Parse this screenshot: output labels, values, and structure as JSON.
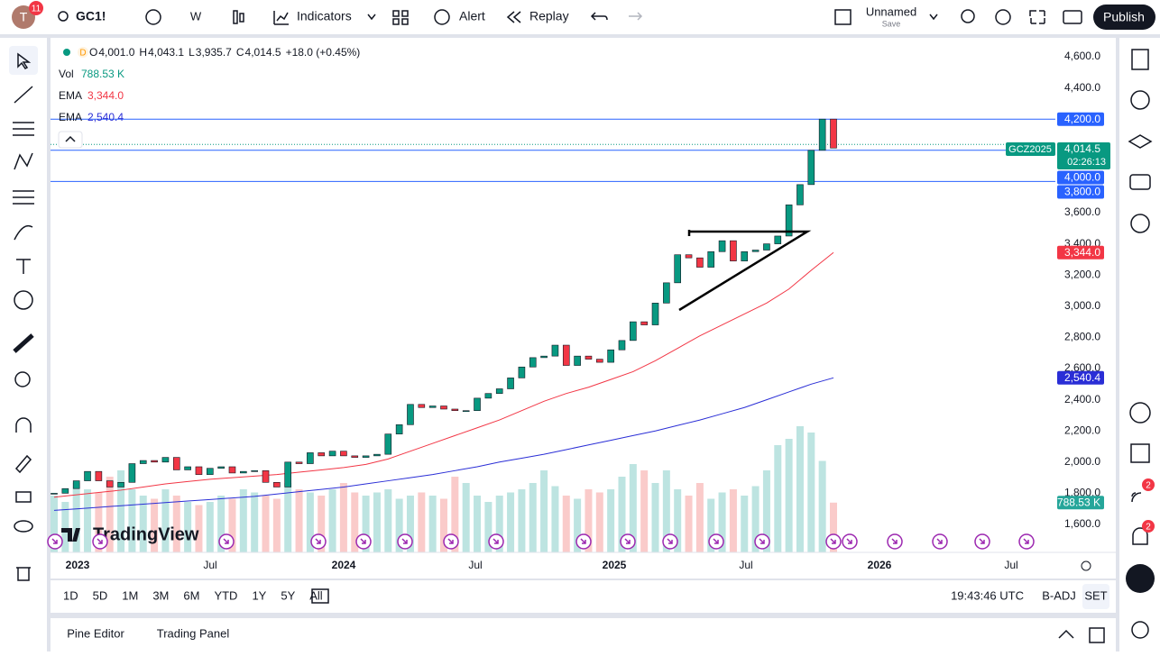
{
  "toolbar": {
    "avatar": "T",
    "badge": "11",
    "symbol": "GC1!",
    "interval": "W",
    "indicators": "Indicators",
    "alert": "Alert",
    "replay": "Replay",
    "layout_name": "Unnamed",
    "layout_status": "Save",
    "publish": "Publish"
  },
  "legend": {
    "timeframe": "D",
    "ohlc": [
      {
        "key": "O",
        "value": "4,001.0"
      },
      {
        "key": "H",
        "value": "4,043.1"
      },
      {
        "key": "L",
        "value": "3,935.7"
      },
      {
        "key": "C",
        "value": "4,014.5"
      }
    ],
    "change": "+18.0 (+0.45%)",
    "volume": {
      "key": "Vol",
      "value": "788.53 K"
    },
    "ema_fast": {
      "key": "EMA",
      "value": "3,344.0"
    },
    "ema_slow": {
      "key": "EMA",
      "value": "2,540.4"
    }
  },
  "chart": {
    "closes": [
      1800,
      1830,
      1880,
      1940,
      1880,
      1840,
      1870,
      1990,
      2010,
      2000,
      2030,
      1950,
      1970,
      1920,
      1960,
      1970,
      1930,
      1940,
      1945,
      1870,
      1840,
      2000,
      1990,
      2060,
      2040,
      2070,
      2040,
      2030,
      2040,
      2050,
      2180,
      2240,
      2370,
      2350,
      2360,
      2340,
      2330,
      2330,
      2410,
      2440,
      2470,
      2540,
      2610,
      2670,
      2680,
      2750,
      2620,
      2680,
      2660,
      2640,
      2720,
      2780,
      2900,
      2880,
      3020,
      3150,
      3330,
      3310,
      3250,
      3350,
      3420,
      3290,
      3350,
      3360,
      3400,
      3450,
      3650,
      3780,
      4000,
      4200,
      4014.5
    ],
    "volumes": [
      900,
      800,
      1100,
      1000,
      950,
      1200,
      1300,
      1000,
      900,
      850,
      1000,
      900,
      800,
      750,
      800,
      900,
      850,
      1000,
      950,
      900,
      850,
      1100,
      1000,
      950,
      900,
      1000,
      1100,
      950,
      900,
      950,
      1000,
      850,
      900,
      950,
      900,
      850,
      1200,
      1100,
      900,
      800,
      900,
      950,
      1000,
      1100,
      1300,
      1050,
      900,
      850,
      1000,
      950,
      1000,
      1200,
      1400,
      1300,
      1100,
      1300,
      1000,
      900,
      1100,
      850,
      950,
      1000,
      900,
      1050,
      1300,
      1700,
      1800,
      2000,
      1900,
      1450,
      788.53
    ],
    "ema_fast": [
      1775,
      1790,
      1805,
      1820,
      1840,
      1860,
      1875,
      1890,
      1900,
      1910,
      1920,
      1935,
      1950,
      1965,
      1985,
      2020,
      2070,
      2120,
      2170,
      2220,
      2270,
      2330,
      2390,
      2440,
      2480,
      2530,
      2580,
      2650,
      2730,
      2810,
      2880,
      2950,
      3020,
      3110,
      3230,
      3344
    ],
    "ema_slow": [
      1690,
      1700,
      1710,
      1720,
      1730,
      1740,
      1750,
      1760,
      1770,
      1780,
      1795,
      1810,
      1825,
      1840,
      1860,
      1880,
      1900,
      1920,
      1945,
      1970,
      2000,
      2025,
      2050,
      2080,
      2110,
      2140,
      2170,
      2200,
      2235,
      2270,
      2310,
      2350,
      2400,
      2450,
      2500,
      2540.4
    ],
    "price_ticks": [
      {
        "value": 1600,
        "label": "1,600.0"
      },
      {
        "value": 1800,
        "label": "1,800.0"
      },
      {
        "value": 2000,
        "label": "2,000.0"
      },
      {
        "value": 2200,
        "label": "2,200.0"
      },
      {
        "value": 2400,
        "label": "2,400.0"
      },
      {
        "value": 2600,
        "label": "2,600.0"
      },
      {
        "value": 2800,
        "label": "2,800.0"
      },
      {
        "value": 3000,
        "label": "3,000.0"
      },
      {
        "value": 3200,
        "label": "3,200.0"
      },
      {
        "value": 3400,
        "label": "3,400.0"
      },
      {
        "value": 3600,
        "label": "3,600.0"
      },
      {
        "value": 4400,
        "label": "4,400.0"
      },
      {
        "value": 4600,
        "label": "4,600.0"
      }
    ],
    "price_lines": [
      {
        "value": 4200,
        "label": "4,200.0"
      },
      {
        "value": 4000,
        "label": "4,000.0"
      },
      {
        "value": 3800,
        "label": "3,800.0"
      }
    ],
    "current": {
      "value": 4014.5,
      "label": "4,014.5",
      "countdown": "02:26:13",
      "contract": "GCZ2025"
    },
    "ema_fast_tag": {
      "value": 3344,
      "label": "3,344.0"
    },
    "ema_slow_tag": {
      "value": 2540.4,
      "label": "2,540.4"
    },
    "volume_tag": {
      "value": 788.53,
      "label": "788.53 K"
    },
    "time_labels": [
      "2023",
      "Jul",
      "2024",
      "Jul",
      "2025",
      "Jul",
      "2026",
      "Jul"
    ],
    "watermark": "TradingView"
  },
  "bottom_bar": {
    "ranges": [
      "1D",
      "5D",
      "1M",
      "3M",
      "6M",
      "YTD",
      "1Y",
      "5Y",
      "All"
    ],
    "clock": "19:43:46 UTC",
    "adjust": "B-ADJ",
    "session": "SET"
  },
  "panel": {
    "tabs": [
      "Pine Editor",
      "Trading Panel"
    ]
  },
  "side_badges": [
    "2",
    "2"
  ]
}
